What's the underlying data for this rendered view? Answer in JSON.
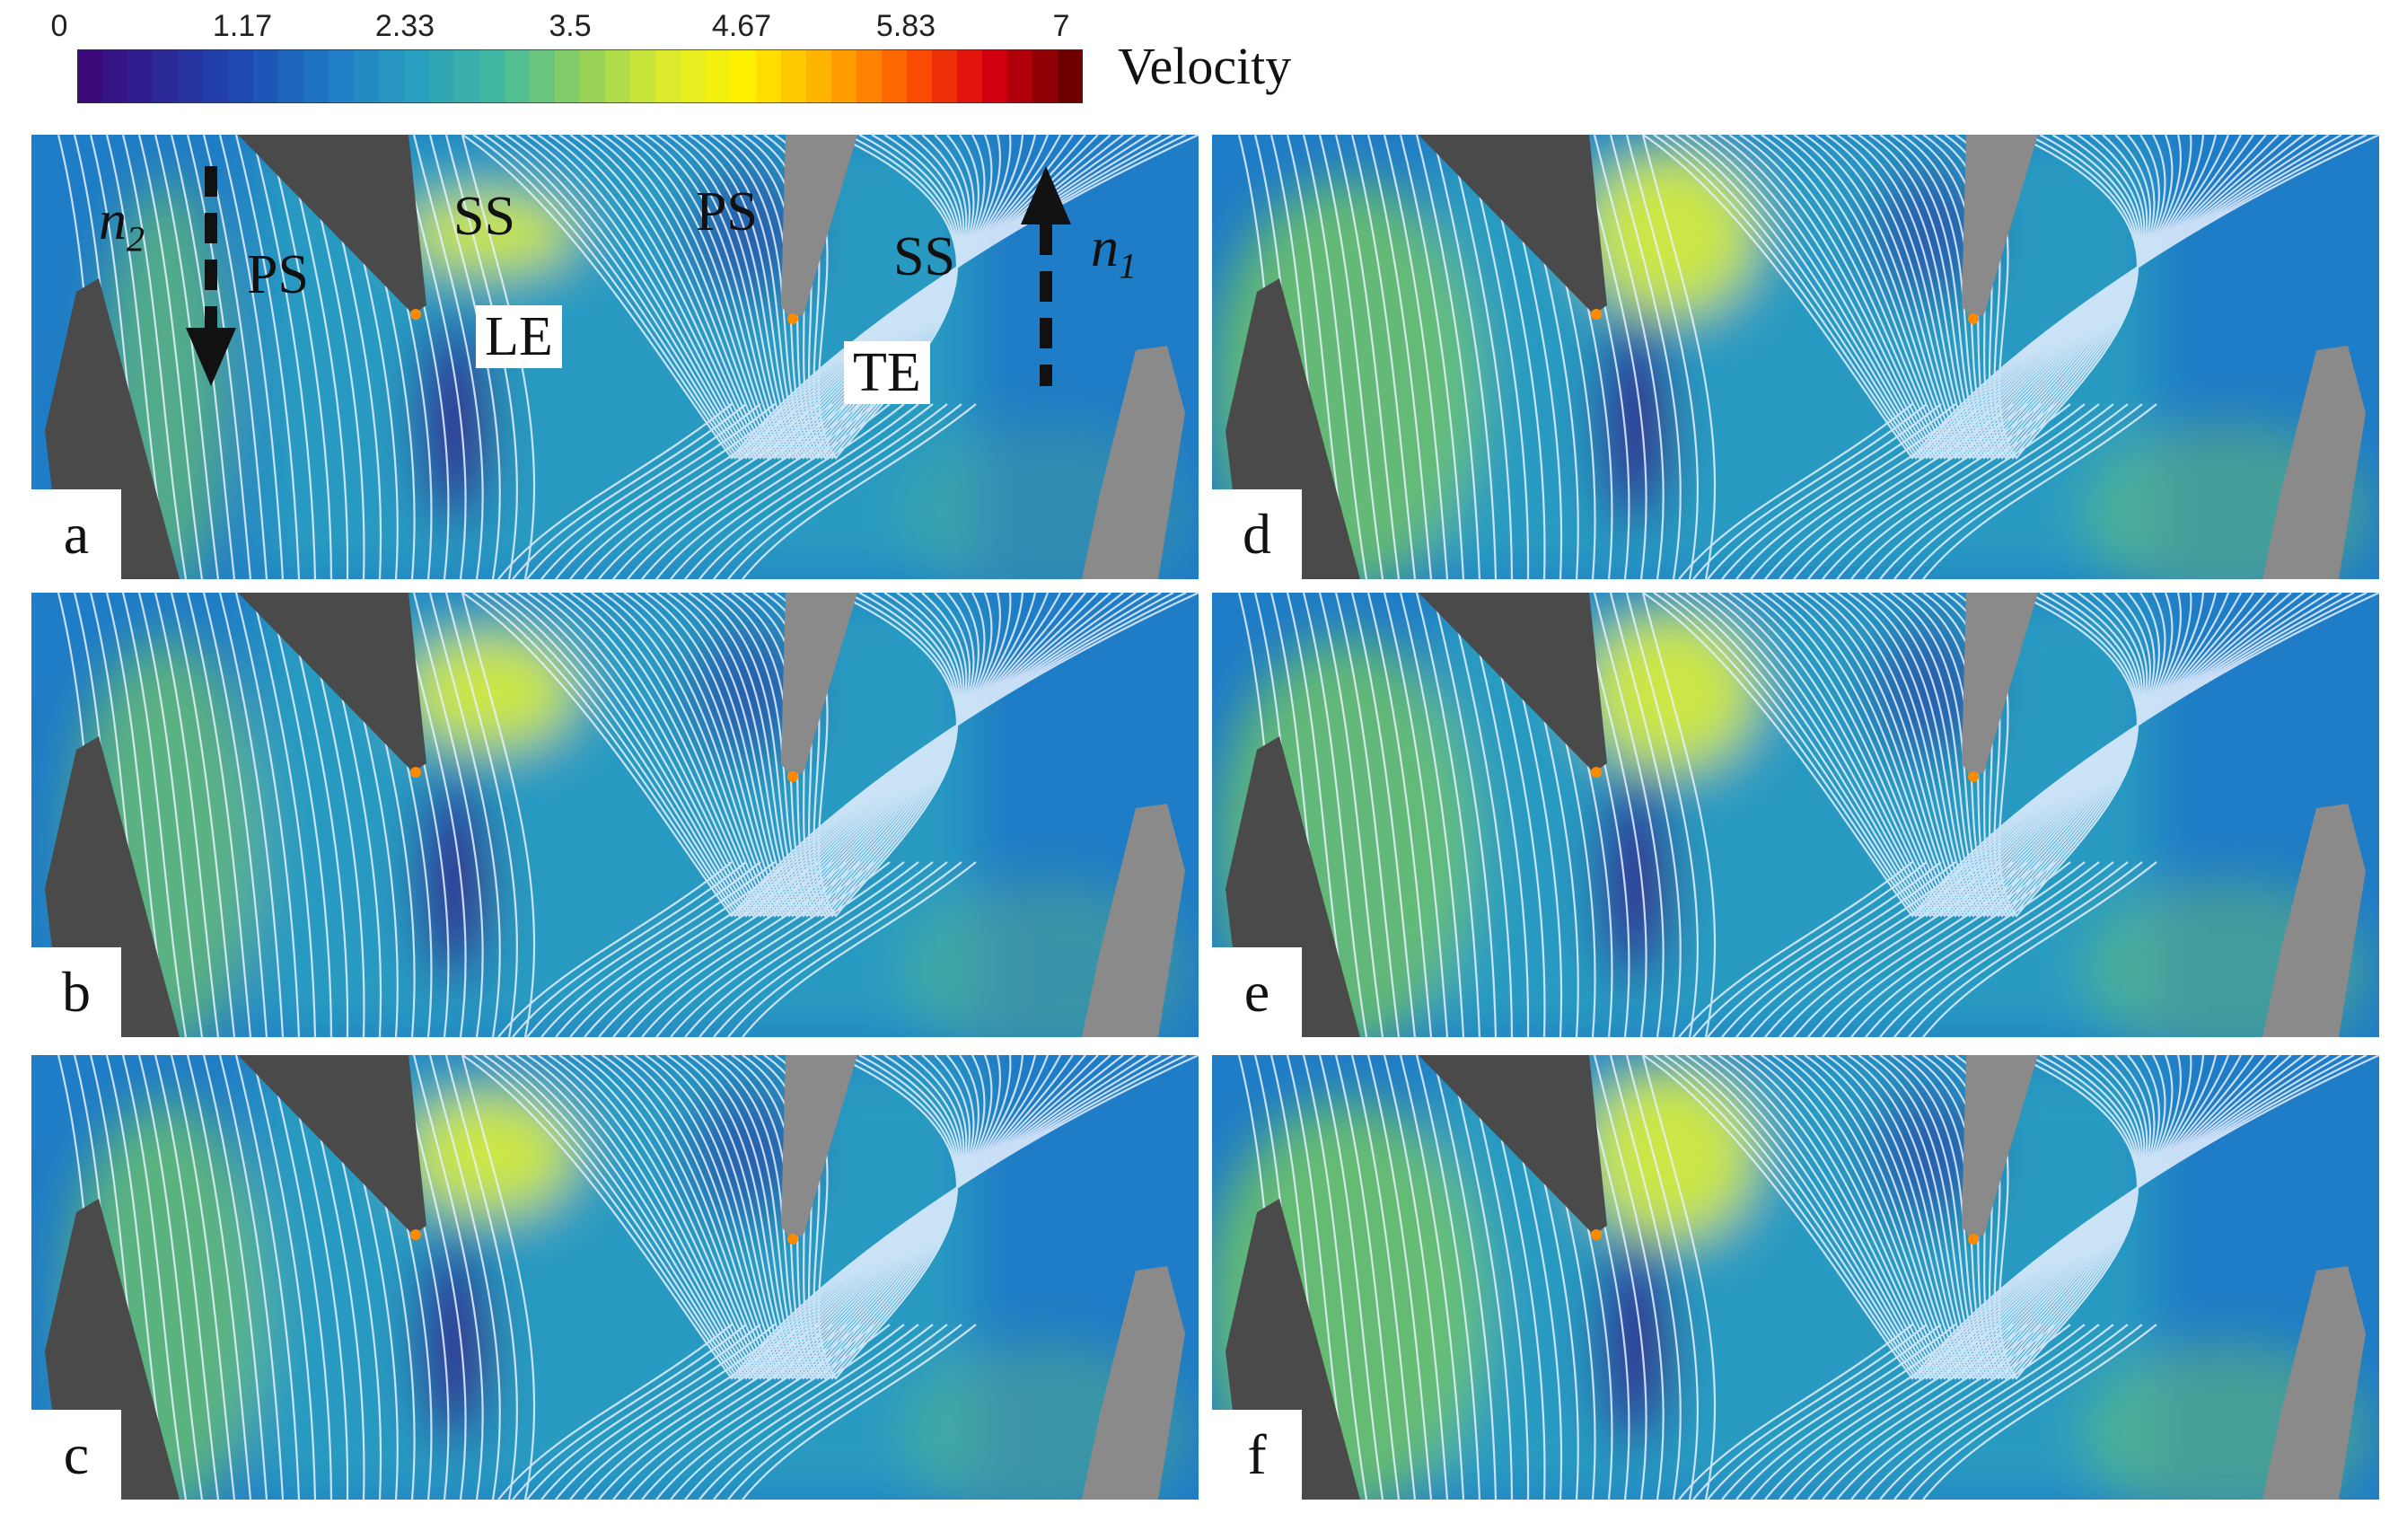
{
  "legend": {
    "title": "Velocity",
    "min": 0,
    "max": 7,
    "ticks": [
      "0",
      "1.17",
      "2.33",
      "3.5",
      "4.67",
      "5.83",
      "7"
    ],
    "colors": [
      "#3a0a7a",
      "#2a2a9a",
      "#1c4fb4",
      "#1f7cc6",
      "#2aa0c0",
      "#40b8a0",
      "#8ed060",
      "#d8ea30",
      "#fff200",
      "#ffb000",
      "#ff5a00",
      "#d80010",
      "#700000"
    ]
  },
  "panels": [
    {
      "id": "a",
      "letter": "a"
    },
    {
      "id": "b",
      "letter": "b"
    },
    {
      "id": "c",
      "letter": "c"
    },
    {
      "id": "d",
      "letter": "d"
    },
    {
      "id": "e",
      "letter": "e"
    },
    {
      "id": "f",
      "letter": "f"
    }
  ],
  "annotations": {
    "n2_base": "n",
    "n2_sub": "2",
    "n1_base": "n",
    "n1_sub": "1",
    "ps_left": "PS",
    "ss_left": "SS",
    "ps_right": "PS",
    "ss_right": "SS",
    "le": "LE",
    "te": "TE"
  },
  "field_colors": {
    "background": "#1f7cc6",
    "teal": "#2aa0c0",
    "green": "#7ccf5a",
    "yellow": "#dff03a",
    "deep_blue": "#2a2a9a",
    "violet": "#3a0a7a",
    "blade": "#4a4a4a",
    "blade_light": "#8a8a8a",
    "streamline": "#e8f0ff"
  }
}
